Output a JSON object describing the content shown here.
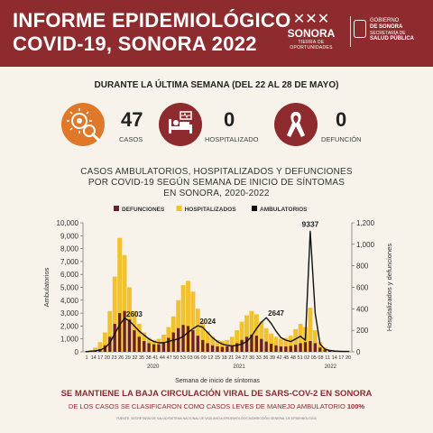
{
  "header": {
    "title_line1": "INFORME EPIDEMIOLÓGICO",
    "title_line2": "COVID-19, SONORA 2022",
    "logo_sonora": {
      "name": "SONORA",
      "tagline": "TIERRA DE OPORTUNIDADES"
    },
    "logo_gobierno": {
      "line1": "GOBIERNO",
      "line2": "DE SONORA",
      "line3": "SECRETARÍA DE",
      "line4": "SALUD PÚBLICA"
    }
  },
  "week_label": "DURANTE LA ÚLTIMA SEMANA (DEL 22 AL 28 DE MAYO)",
  "stats": [
    {
      "value": "47",
      "label": "CASOS",
      "icon": "virus-magnifier-icon",
      "color": "#e0782a"
    },
    {
      "value": "0",
      "label": "HOSPITALIZADO",
      "icon": "hospital-bed-icon",
      "color": "#8e2b2f"
    },
    {
      "value": "0",
      "label": "DEFUNCIÓN",
      "icon": "ribbon-icon",
      "color": "#8e2b2f"
    }
  ],
  "chart_title": {
    "line1": "CASOS AMBULATORIOS, HOSPITALIZADOS Y DEFUNCIONES",
    "line2": "POR COVID-19 SEGÚN SEMANA DE INICIO DE SÍNTOMAS",
    "line3": "EN SONORA, 2020-2022"
  },
  "chart_data": {
    "type": "bar",
    "legend": [
      "DEFUNCIONES",
      "HOSPITALIZADOS",
      "AMBULATORIOS"
    ],
    "colors": {
      "defunciones": "#6b1f2a",
      "hospitalizados": "#f2c12e",
      "ambulatorios": "#111111"
    },
    "xlabel": "Semana de inicio de síntomas",
    "ylabel_left": "Ambulatorios",
    "ylabel_right": "Hospitalizados y defunciones",
    "ylim_left": [
      0,
      10000
    ],
    "ylim_right": [
      0,
      1200
    ],
    "yticks_left": [
      "0",
      "1,000",
      "2,000",
      "3,000",
      "4,000",
      "5,000",
      "6,000",
      "7,000",
      "8,000",
      "9,000",
      "10,000"
    ],
    "yticks_right": [
      "0",
      "200",
      "400",
      "600",
      "800",
      "1,000",
      "1,200"
    ],
    "year_labels": [
      {
        "label": "2020",
        "week_index": 24
      },
      {
        "label": "2021",
        "week_index": 72
      },
      {
        "label": "2022",
        "week_index": 123
      }
    ],
    "x_tick_labels": [
      {
        "label": "1",
        "index": 0
      },
      {
        "label": "14",
        "index": 1
      },
      {
        "label": "17",
        "index": 2
      },
      {
        "label": "20",
        "index": 3
      },
      {
        "label": "23",
        "index": 4
      },
      {
        "label": "26",
        "index": 5
      },
      {
        "label": "29",
        "index": 6
      },
      {
        "label": "32",
        "index": 7
      },
      {
        "label": "35",
        "index": 8
      },
      {
        "label": "38",
        "index": 9
      },
      {
        "label": "41",
        "index": 10
      },
      {
        "label": "44",
        "index": 11
      },
      {
        "label": "47",
        "index": 12
      },
      {
        "label": "50",
        "index": 13
      },
      {
        "label": "53",
        "index": 14
      },
      {
        "label": "03",
        "index": 15
      },
      {
        "label": "06",
        "index": 16
      },
      {
        "label": "09",
        "index": 17
      },
      {
        "label": "12",
        "index": 18
      },
      {
        "label": "15",
        "index": 19
      },
      {
        "label": "18",
        "index": 20
      },
      {
        "label": "21",
        "index": 21
      },
      {
        "label": "24",
        "index": 22
      },
      {
        "label": "27",
        "index": 23
      },
      {
        "label": "30",
        "index": 24
      },
      {
        "label": "33",
        "index": 25
      },
      {
        "label": "36",
        "index": 26
      },
      {
        "label": "39",
        "index": 27
      },
      {
        "label": "42",
        "index": 28
      },
      {
        "label": "45",
        "index": 29
      },
      {
        "label": "48",
        "index": 30
      },
      {
        "label": "51",
        "index": 31
      },
      {
        "label": "02",
        "index": 32
      },
      {
        "label": "05",
        "index": 33
      },
      {
        "label": "08",
        "index": 34
      },
      {
        "label": "11",
        "index": 35
      },
      {
        "label": "14",
        "index": 36
      },
      {
        "label": "17",
        "index": 37
      },
      {
        "label": "20",
        "index": 38
      }
    ],
    "series": [
      {
        "name": "AMBULATORIOS",
        "axis": "left",
        "values": [
          10,
          40,
          80,
          150,
          300,
          700,
          1400,
          2100,
          2603,
          2400,
          2000,
          1600,
          1300,
          1000,
          800,
          700,
          700,
          800,
          900,
          1000,
          1200,
          1500,
          1800,
          2024,
          1900,
          1500,
          1100,
          800,
          600,
          500,
          450,
          500,
          600,
          800,
          1200,
          1800,
          2300,
          2647,
          2200,
          1600,
          1100,
          900,
          800,
          1000,
          1200,
          900,
          9337,
          3000,
          600,
          200,
          100,
          60,
          40,
          30,
          25
        ]
      },
      {
        "name": "HOSPITALIZADOS",
        "axis": "right",
        "values": [
          5,
          15,
          40,
          90,
          180,
          380,
          700,
          1060,
          900,
          600,
          380,
          260,
          180,
          130,
          110,
          120,
          160,
          230,
          330,
          480,
          620,
          660,
          560,
          400,
          280,
          190,
          140,
          110,
          100,
          110,
          140,
          200,
          280,
          340,
          380,
          350,
          280,
          220,
          170,
          140,
          120,
          130,
          150,
          210,
          260,
          230,
          410,
          200,
          90,
          40,
          20,
          10,
          8,
          6,
          5
        ]
      },
      {
        "name": "DEFUNCIONES",
        "axis": "right",
        "values": [
          1,
          4,
          10,
          25,
          60,
          140,
          260,
          360,
          380,
          300,
          200,
          140,
          100,
          80,
          70,
          70,
          90,
          130,
          180,
          220,
          250,
          240,
          200,
          150,
          110,
          80,
          60,
          50,
          45,
          50,
          60,
          80,
          110,
          140,
          160,
          150,
          120,
          95,
          75,
          60,
          50,
          50,
          55,
          65,
          80,
          90,
          100,
          80,
          40,
          20,
          10,
          5,
          3,
          2,
          1
        ]
      }
    ],
    "peak_labels": [
      {
        "text": "2603",
        "index": 8
      },
      {
        "text": "2024",
        "index": 23
      },
      {
        "text": "2647",
        "index": 37
      },
      {
        "text": "9337",
        "index": 46
      }
    ]
  },
  "footer": {
    "headline": "SE MANTIENE LA BAJA CIRCULACIÓN VIRAL DE SARS-COV-2 EN SONORA",
    "subline": "DE LOS CASOS SE CLASIFICARON COMO CASOS LEVES DE  MANEJO AMBULATORIO",
    "subline_pct": "100%",
    "source": "FUENTE: SECRETARÍA DE SALUD/SISTEMA NACIONAL DE VIGILANCIA EPIDEMIOLÓGICA/DIRECCIÓN GENERAL DE EPIDEMIOLOGÍA"
  }
}
